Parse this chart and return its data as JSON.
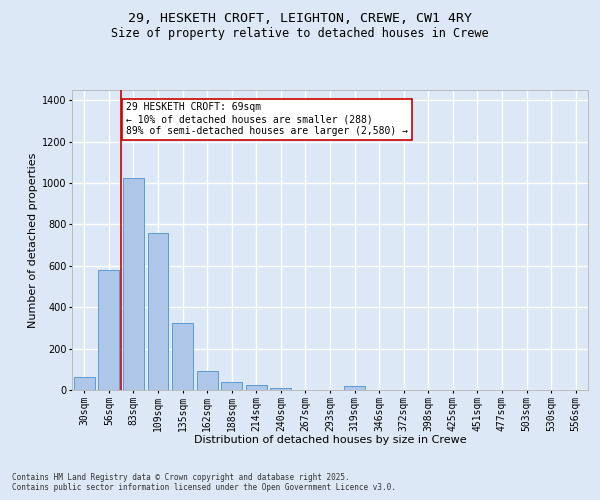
{
  "title_line1": "29, HESKETH CROFT, LEIGHTON, CREWE, CW1 4RY",
  "title_line2": "Size of property relative to detached houses in Crewe",
  "xlabel": "Distribution of detached houses by size in Crewe",
  "ylabel": "Number of detached properties",
  "bar_color": "#aec6e8",
  "bar_edge_color": "#5b9bd5",
  "background_color": "#dce8f5",
  "grid_color": "#ffffff",
  "categories": [
    "30sqm",
    "56sqm",
    "83sqm",
    "109sqm",
    "135sqm",
    "162sqm",
    "188sqm",
    "214sqm",
    "240sqm",
    "267sqm",
    "293sqm",
    "319sqm",
    "346sqm",
    "372sqm",
    "398sqm",
    "425sqm",
    "451sqm",
    "477sqm",
    "503sqm",
    "530sqm",
    "556sqm"
  ],
  "values": [
    65,
    580,
    1025,
    760,
    325,
    90,
    38,
    22,
    12,
    0,
    0,
    18,
    0,
    0,
    0,
    0,
    0,
    0,
    0,
    0,
    0
  ],
  "ylim": [
    0,
    1450
  ],
  "yticks": [
    0,
    200,
    400,
    600,
    800,
    1000,
    1200,
    1400
  ],
  "annotation_line1": "29 HESKETH CROFT: 69sqm",
  "annotation_line2": "← 10% of detached houses are smaller (288)",
  "annotation_line3": "89% of semi-detached houses are larger (2,580) →",
  "vline_x": 1.5,
  "vline_color": "#cc0000",
  "annotation_box_color": "#ffffff",
  "annotation_box_edge": "#cc0000",
  "footnote1": "Contains HM Land Registry data © Crown copyright and database right 2025.",
  "footnote2": "Contains public sector information licensed under the Open Government Licence v3.0.",
  "title_fontsize": 9.5,
  "subtitle_fontsize": 8.5,
  "label_fontsize": 8,
  "tick_fontsize": 7,
  "annot_fontsize": 7
}
